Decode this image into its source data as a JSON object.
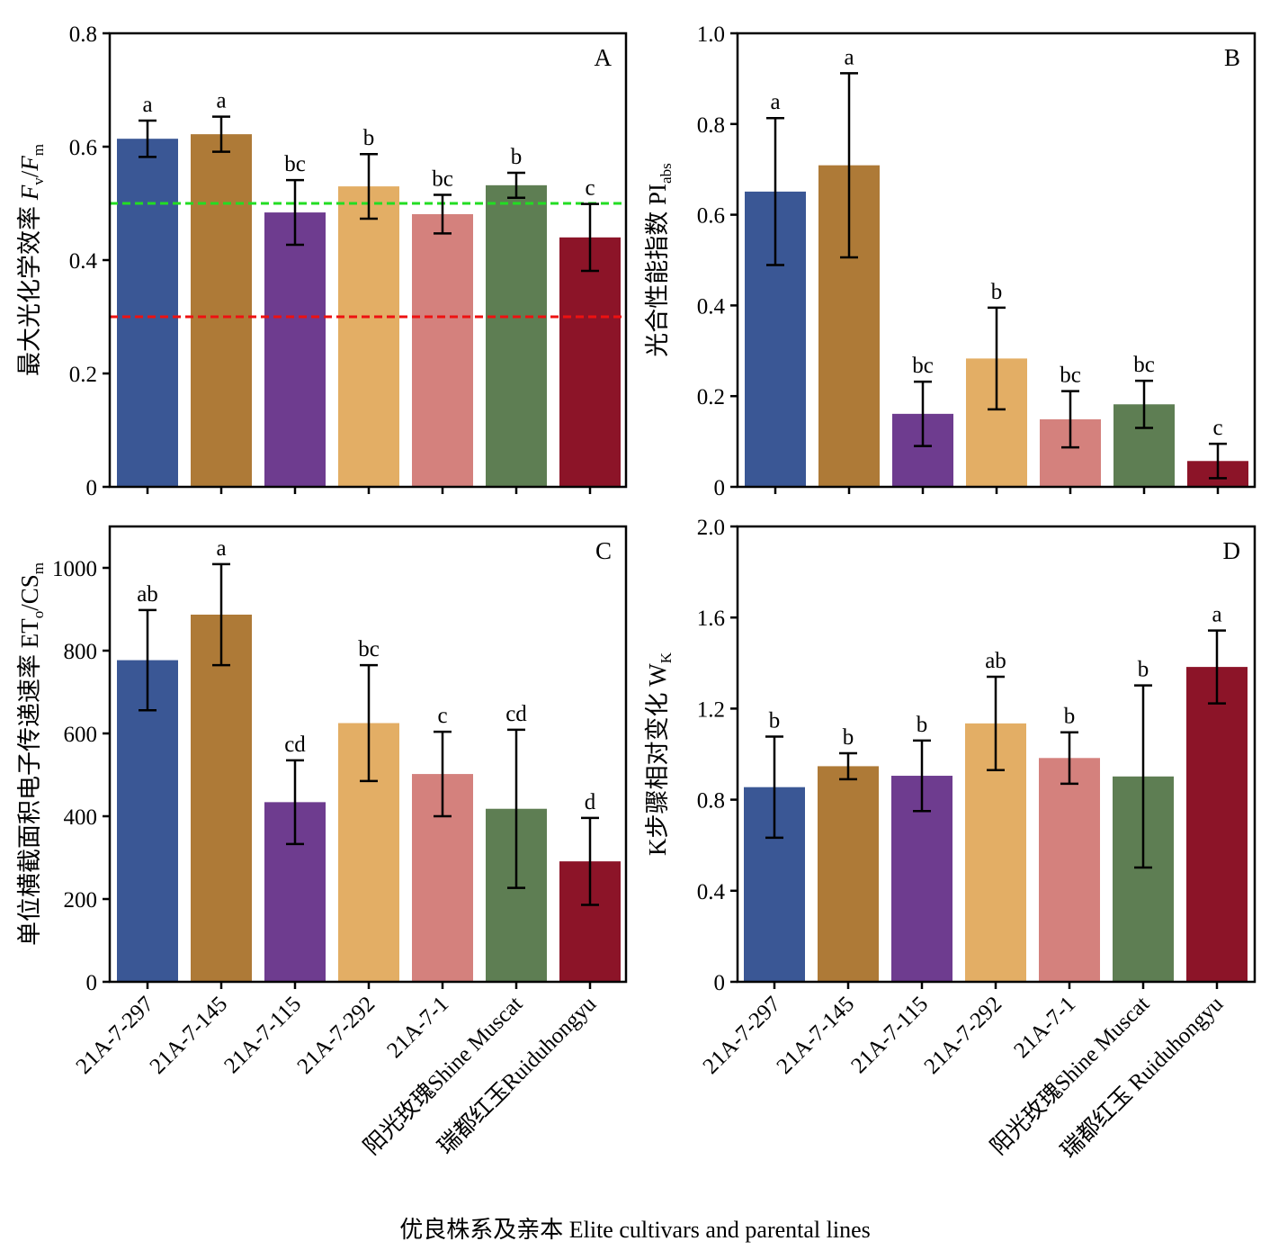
{
  "figure": {
    "x_title": "优良株系及亲本 Elite cultivars and parental lines"
  },
  "chart_data": [
    {
      "type": "bar",
      "panel": "A",
      "ylabel": "最大光化学效率 Fv/Fm",
      "ylabel_parts": [
        {
          "t": "最大光化学效率 ",
          "style": "normal"
        },
        {
          "t": "F",
          "style": "italic"
        },
        {
          "t": "v",
          "style": "sub"
        },
        {
          "t": "/",
          "style": "normal"
        },
        {
          "t": "F",
          "style": "italic"
        },
        {
          "t": "m",
          "style": "sub"
        }
      ],
      "ylim": [
        0,
        0.8
      ],
      "yticks": [
        0,
        0.2,
        0.4,
        0.6,
        0.8
      ],
      "ytick_labels": [
        "0",
        "0.2",
        "0.4",
        "0.6",
        "0.8"
      ],
      "categories": [
        "21A-7-297",
        "21A-7-145",
        "21A-7-115",
        "21A-7-292",
        "21A-7-1",
        "阳光玫瑰Shine Muscat",
        "瑞都红玉Ruiduhongyu"
      ],
      "values": [
        0.614,
        0.622,
        0.484,
        0.53,
        0.481,
        0.532,
        0.44
      ],
      "errors": [
        0.032,
        0.031,
        0.057,
        0.057,
        0.034,
        0.022,
        0.059
      ],
      "letters": [
        "a",
        "a",
        "bc",
        "b",
        "bc",
        "b",
        "c"
      ],
      "reference_lines": [
        {
          "y": 0.5,
          "color": "#22dd22"
        },
        {
          "y": 0.3,
          "color": "#ee1111"
        }
      ]
    },
    {
      "type": "bar",
      "panel": "B",
      "ylabel": "光合性能指数 PIabs",
      "ylabel_parts": [
        {
          "t": "光合性能指数 PI",
          "style": "normal"
        },
        {
          "t": "abs",
          "style": "sub"
        }
      ],
      "ylim": [
        0,
        1.0
      ],
      "yticks": [
        0,
        0.2,
        0.4,
        0.6,
        0.8,
        1.0
      ],
      "ytick_labels": [
        "0",
        "0.2",
        "0.4",
        "0.6",
        "0.8",
        "1.0"
      ],
      "categories": [
        "21A-7-297",
        "21A-7-145",
        "21A-7-115",
        "21A-7-292",
        "21A-7-1",
        "阳光玫瑰Shine Muscat",
        "瑞都红玉Ruiduhongyu"
      ],
      "values": [
        0.651,
        0.709,
        0.161,
        0.283,
        0.149,
        0.182,
        0.057
      ],
      "errors": [
        0.162,
        0.203,
        0.071,
        0.112,
        0.062,
        0.052,
        0.038
      ],
      "letters": [
        "a",
        "a",
        "bc",
        "b",
        "bc",
        "bc",
        "c"
      ]
    },
    {
      "type": "bar",
      "panel": "C",
      "ylabel": "单位横截面积电子传递速率 ETo/CSm",
      "ylabel_parts": [
        {
          "t": "单位横截面积电子传递速率 ET",
          "style": "normal"
        },
        {
          "t": "o",
          "style": "sub"
        },
        {
          "t": "/CS",
          "style": "normal"
        },
        {
          "t": "m",
          "style": "sub"
        }
      ],
      "ylim": [
        0,
        1100
      ],
      "yticks": [
        0,
        200,
        400,
        600,
        800,
        1000
      ],
      "ytick_labels": [
        "0",
        "200",
        "400",
        "600",
        "800",
        "1000"
      ],
      "categories": [
        "21A-7-297",
        "21A-7-145",
        "21A-7-115",
        "21A-7-292",
        "21A-7-1",
        "阳光玫瑰Shine Muscat",
        "瑞都红玉Ruiduhongyu"
      ],
      "values": [
        777,
        887,
        434,
        625,
        502,
        418,
        291
      ],
      "errors": [
        121,
        122,
        101,
        140,
        102,
        191,
        105
      ],
      "letters": [
        "ab",
        "a",
        "cd",
        "bc",
        "c",
        "cd",
        "d"
      ]
    },
    {
      "type": "bar",
      "panel": "D",
      "ylabel": "K步骤相对变化 WK",
      "ylabel_parts": [
        {
          "t": "K步骤相对变化 W",
          "style": "normal"
        },
        {
          "t": "K",
          "style": "sub"
        }
      ],
      "ylim": [
        0,
        2.0
      ],
      "yticks": [
        0,
        0.4,
        0.8,
        1.2,
        1.6,
        2.0
      ],
      "ytick_labels": [
        "0",
        "0.4",
        "0.8",
        "1.2",
        "1.6",
        "2.0"
      ],
      "categories": [
        "21A-7-297",
        "21A-7-145",
        "21A-7-115",
        "21A-7-292",
        "21A-7-1",
        "阳光玫瑰Shine Muscat",
        "瑞都红玉 Ruiduhongyu"
      ],
      "values": [
        0.855,
        0.947,
        0.905,
        1.135,
        0.983,
        0.902,
        1.383
      ],
      "errors": [
        0.222,
        0.057,
        0.155,
        0.205,
        0.113,
        0.4,
        0.16
      ],
      "letters": [
        "b",
        "b",
        "b",
        "ab",
        "b",
        "b",
        "a"
      ]
    }
  ],
  "bar_colors": [
    "#3a5795",
    "#ae7a37",
    "#6e3c8f",
    "#e3ae65",
    "#d4817d",
    "#5e7e53",
    "#8c1428"
  ]
}
